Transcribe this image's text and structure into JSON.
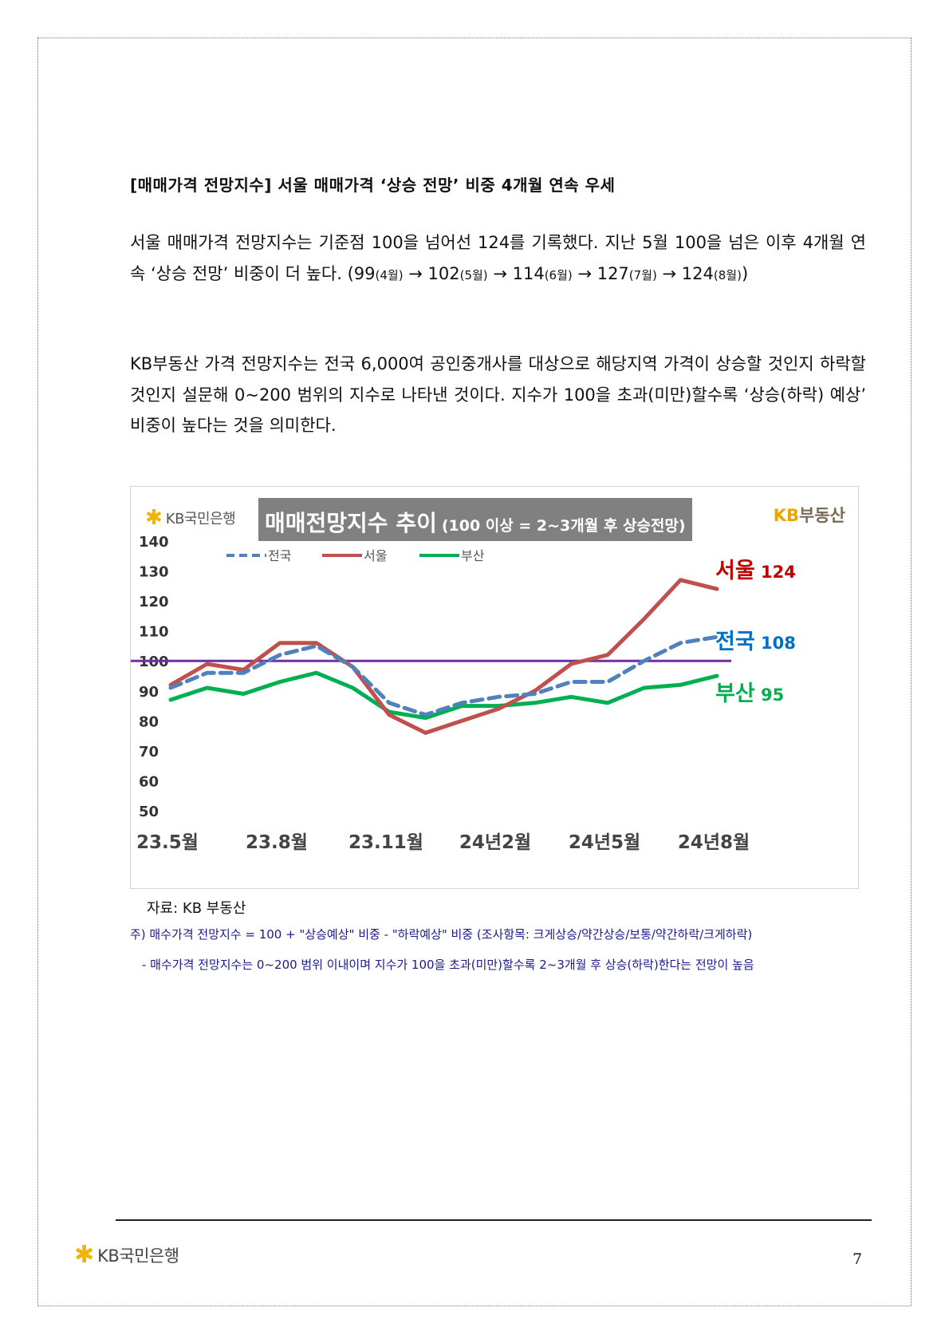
{
  "heading": "[매매가격 전망지수] 서울 매매가격 ‘상승 전망’ 비중 4개월 연속 우세",
  "paragraph1": {
    "text_a": "서울 매매가격 전망지수는 기준점 100을 넘어선 124를 기록했다. 지난 5월 100을 넘은 이후 4개월 연속 ‘상승 전망’ 비중이 더 높다. (99",
    "m1": "(4월)",
    "v2": " → 102",
    "m2": "(5월)",
    "v3": " → 114",
    "m3": "(6월)",
    "v4": " → 127",
    "m4": "(7월)",
    "v5": " → 124",
    "m5": "(8월)",
    "end": ")"
  },
  "paragraph2": "KB부동산 가격 전망지수는 전국 6,000여 공인중개사를 대상으로 해당지역 가격이 상승할 것인지 하락할 것인지 설문해 0~200 범위의 지수로 나타낸 것이다. 지수가 100을 초과(미만)할수록 ‘상승(하락) 예상’ 비중이 높다는 것을 의미한다.",
  "chart_logo": "KB국민은행",
  "chart_title_main": "매매전망지수 추이",
  "chart_title_sub": "(100 이상 = 2~3개월 후 상승전망)",
  "kb_land": {
    "kb": "KB",
    "rest": "부동산"
  },
  "chart_data": {
    "type": "line",
    "x": [
      "23.5",
      "23.6",
      "23.7",
      "23.8",
      "23.9",
      "23.10",
      "23.11",
      "23.12",
      "24.1",
      "24.2",
      "24.3",
      "24.4",
      "24.5",
      "24.6",
      "24.7",
      "24.8"
    ],
    "x_tick_labels": [
      "23.5월",
      "23.8월",
      "23.11월",
      "24년2월",
      "24년5월",
      "24년8월"
    ],
    "y_ticks": [
      140,
      130,
      120,
      110,
      100,
      90,
      80,
      70,
      60,
      50
    ],
    "ylim": [
      50,
      140
    ],
    "reference_line": 100,
    "series": [
      {
        "name": "전국",
        "color": "#4f81bd",
        "style": "dashed",
        "values": [
          91,
          96,
          96,
          102,
          105,
          98,
          86,
          82,
          86,
          88,
          89,
          93,
          93,
          100,
          106,
          108
        ]
      },
      {
        "name": "서울",
        "color": "#c0504d",
        "style": "solid",
        "values": [
          92,
          99,
          97,
          106,
          106,
          98,
          82,
          76,
          80,
          84,
          90,
          99,
          102,
          114,
          127,
          124
        ]
      },
      {
        "name": "부산",
        "color": "#00b050",
        "style": "solid",
        "values": [
          87,
          91,
          89,
          93,
          96,
          91,
          83,
          81,
          85,
          85,
          86,
          88,
          86,
          91,
          92,
          95
        ]
      }
    ],
    "reference_color": "#7030a0",
    "end_labels": [
      {
        "name": "서울",
        "value": "124",
        "color": "#c00000"
      },
      {
        "name": "전국",
        "value": "108",
        "color": "#0070c0"
      },
      {
        "name": "부산",
        "value": "95",
        "color": "#00b050"
      }
    ]
  },
  "source": "자료: KB 부동산",
  "note1": "주) 매수가격 전망지수 = 100 + \"상승예상\" 비중 - \"하락예상\" 비중 (조사항목: 크게상승/약간상승/보통/약간하락/크게하락)",
  "note2": "- 매수가격 전망지수는 0~200 범위 이내이며 지수가 100을 초과(미만)할수록 2~3개월 후 상승(하락)한다는 전망이 높음",
  "footer_logo": "KB국민은행",
  "page_number": "7"
}
